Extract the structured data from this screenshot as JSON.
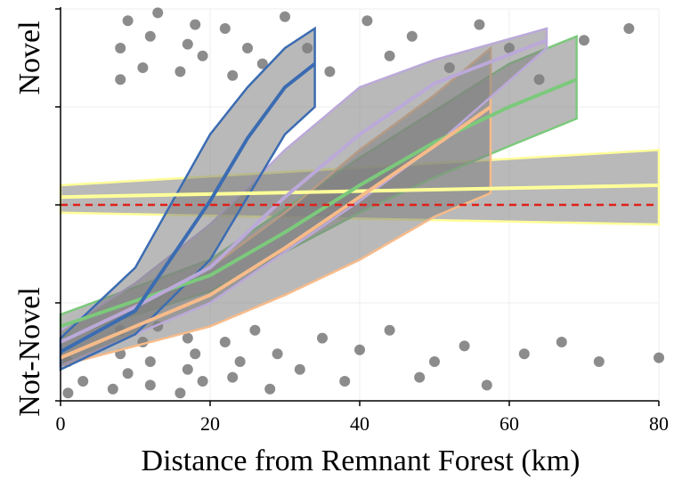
{
  "chart_data": {
    "type": "logistic",
    "x_label": "Distance from Remnant Forest (km)",
    "y_categories": [
      "Not-Novel",
      "Novel"
    ],
    "xlim": [
      0,
      80
    ],
    "xticks": [
      0,
      20,
      40,
      60,
      80
    ],
    "ylim": [
      0,
      1
    ],
    "yticks": [
      0,
      0.25,
      0.5,
      0.75,
      1
    ],
    "grid": true,
    "band_color": "#808080",
    "reference_line": {
      "value": 0.5,
      "color": "#e0201a"
    },
    "points": {
      "color": "#000000",
      "x": [
        1,
        1,
        3,
        7,
        8,
        8,
        9,
        11,
        12,
        12,
        13,
        16,
        17,
        17,
        18,
        19,
        22,
        23,
        24,
        26,
        28,
        29,
        32,
        35,
        38,
        40,
        44,
        48,
        50,
        54,
        57,
        62,
        67,
        72,
        80,
        8,
        8,
        9,
        11,
        12,
        13,
        16,
        17,
        18,
        19,
        22,
        23,
        25,
        27,
        30,
        33,
        36,
        41,
        44,
        47,
        52,
        56,
        60,
        64,
        70,
        76
      ],
      "y": [
        0.02,
        0.1,
        0.05,
        0.03,
        0.12,
        0.18,
        0.07,
        0.15,
        0.04,
        0.1,
        0.19,
        0.02,
        0.08,
        0.16,
        0.12,
        0.05,
        0.15,
        0.06,
        0.1,
        0.18,
        0.03,
        0.12,
        0.08,
        0.16,
        0.05,
        0.13,
        0.18,
        0.06,
        0.1,
        0.14,
        0.04,
        0.12,
        0.15,
        0.1,
        0.11,
        0.82,
        0.9,
        0.97,
        0.85,
        0.93,
        0.99,
        0.84,
        0.91,
        0.96,
        0.88,
        0.95,
        0.83,
        0.9,
        0.86,
        0.98,
        0.9,
        0.84,
        0.97,
        0.88,
        0.93,
        0.85,
        0.96,
        0.9,
        0.82,
        0.92,
        0.95
      ]
    },
    "series": [
      {
        "color": "#ffff99",
        "x": [
          0,
          80
        ],
        "values": [
          0.52,
          0.55
        ],
        "upper": [
          0.55,
          0.64
        ],
        "lower": [
          0.48,
          0.45
        ]
      },
      {
        "color": "#7cc97c",
        "x": [
          0,
          20,
          30,
          40,
          50,
          60,
          69
        ],
        "values": [
          0.19,
          0.32,
          0.43,
          0.55,
          0.66,
          0.75,
          0.82
        ],
        "upper": [
          0.22,
          0.36,
          0.49,
          0.62,
          0.74,
          0.86,
          0.93
        ],
        "lower": [
          0.16,
          0.28,
          0.38,
          0.48,
          0.57,
          0.65,
          0.72
        ]
      },
      {
        "color": "#f7bb8a",
        "x": [
          0,
          20,
          30,
          40,
          50,
          57.5
        ],
        "values": [
          0.11,
          0.27,
          0.39,
          0.52,
          0.65,
          0.75
        ],
        "upper": [
          0.15,
          0.34,
          0.48,
          0.64,
          0.78,
          0.9
        ],
        "lower": [
          0.09,
          0.19,
          0.27,
          0.36,
          0.47,
          0.53
        ]
      },
      {
        "color": "#bba9d9",
        "x": [
          0,
          10,
          20,
          30,
          40,
          50,
          65
        ],
        "values": [
          0.15,
          0.24,
          0.34,
          0.52,
          0.68,
          0.81,
          0.92
        ],
        "upper": [
          0.18,
          0.3,
          0.45,
          0.64,
          0.8,
          0.87,
          0.95
        ],
        "lower": [
          0.09,
          0.17,
          0.25,
          0.38,
          0.51,
          0.65,
          0.9
        ]
      },
      {
        "color": "#3b6cb2",
        "x": [
          0,
          10,
          20,
          25,
          30,
          34
        ],
        "values": [
          0.125,
          0.23,
          0.51,
          0.67,
          0.8,
          0.86
        ],
        "upper": [
          0.16,
          0.34,
          0.68,
          0.8,
          0.9,
          0.95
        ],
        "lower": [
          0.08,
          0.17,
          0.36,
          0.52,
          0.68,
          0.75
        ]
      }
    ]
  }
}
